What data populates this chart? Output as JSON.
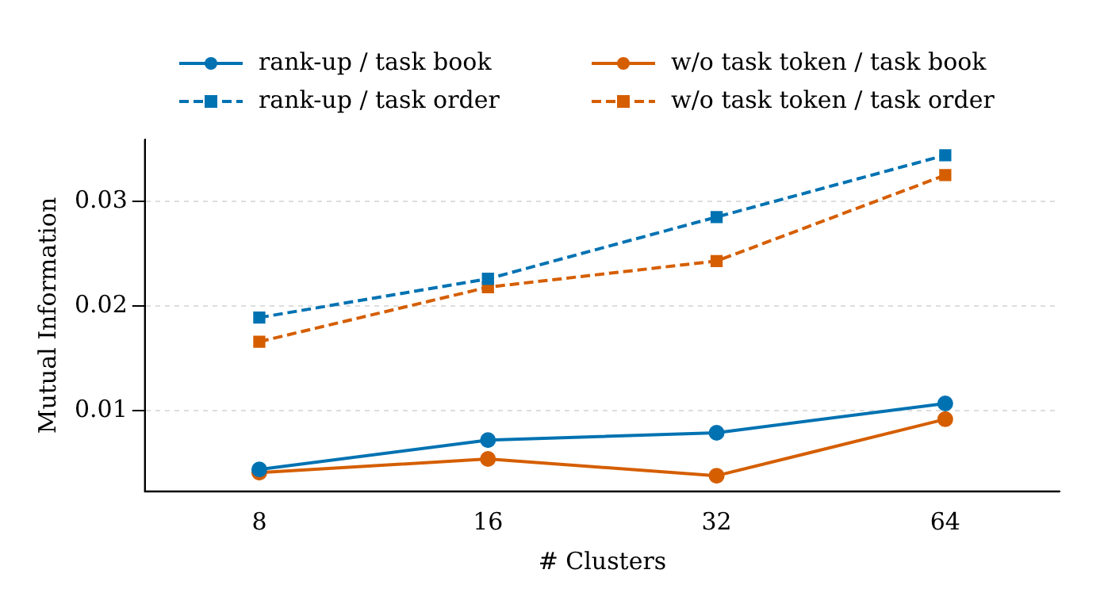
{
  "chart_data": {
    "type": "line",
    "xlabel": "# Clusters",
    "ylabel": "Mutual Information",
    "categories": [
      "8",
      "16",
      "32",
      "64"
    ],
    "ylim": [
      0.0023,
      0.0359
    ],
    "yticks": [
      0.01,
      0.02,
      0.03
    ],
    "grid": "y",
    "legend": "top",
    "series": [
      {
        "name": "rank-up / task book",
        "color": "#0072b2",
        "marker": "circle",
        "line_style": "solid",
        "values": [
          0.0044,
          0.0072,
          0.0079,
          0.0107
        ]
      },
      {
        "name": "rank-up / task order",
        "color": "#0072b2",
        "marker": "square",
        "line_style": "dashed",
        "values": [
          0.0189,
          0.0226,
          0.0285,
          0.0344
        ]
      },
      {
        "name": "w/o task token / task book",
        "color": "#d55e00",
        "marker": "circle",
        "line_style": "solid",
        "values": [
          0.0041,
          0.0054,
          0.0038,
          0.0092
        ]
      },
      {
        "name": "w/o task token / task order",
        "color": "#d55e00",
        "marker": "square",
        "line_style": "dashed",
        "values": [
          0.0166,
          0.0218,
          0.0243,
          0.0325
        ]
      }
    ]
  }
}
